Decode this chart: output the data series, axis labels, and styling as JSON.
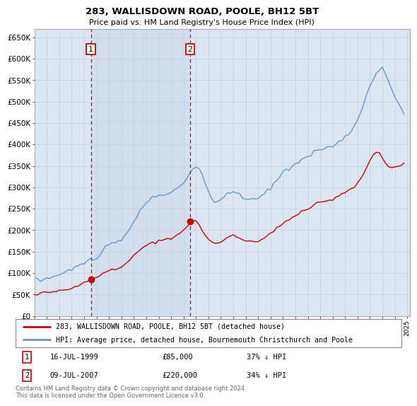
{
  "title": "283, WALLISDOWN ROAD, POOLE, BH12 5BT",
  "subtitle": "Price paid vs. HM Land Registry's House Price Index (HPI)",
  "background_color": "#ffffff",
  "plot_bg_color": "#dce6f1",
  "grid_color": "#c8d4e3",
  "ylim": [
    0,
    670000
  ],
  "yticks": [
    0,
    50000,
    100000,
    150000,
    200000,
    250000,
    300000,
    350000,
    400000,
    450000,
    500000,
    550000,
    600000,
    650000
  ],
  "ytick_labels": [
    "£0",
    "£50K",
    "£100K",
    "£150K",
    "£200K",
    "£250K",
    "£300K",
    "£350K",
    "£400K",
    "£450K",
    "£500K",
    "£550K",
    "£600K",
    "£650K"
  ],
  "sale1_date": 1999.54,
  "sale1_price": 85000,
  "sale1_label": "1",
  "sale2_date": 2007.52,
  "sale2_price": 220000,
  "sale2_label": "2",
  "legend_line1": "283, WALLISDOWN ROAD, POOLE, BH12 5BT (detached house)",
  "legend_line2": "HPI: Average price, detached house, Bournemouth Christchurch and Poole",
  "footer": "Contains HM Land Registry data © Crown copyright and database right 2024.\nThis data is licensed under the Open Government Licence v3.0.",
  "line_red_color": "#cc0000",
  "line_blue_color": "#6699cc",
  "shade_color": "#dce6f1",
  "box_color": "#cc0000",
  "hpi_years": [
    1995.0,
    1995.25,
    1995.5,
    1995.75,
    1996.0,
    1996.25,
    1996.5,
    1996.75,
    1997.0,
    1997.25,
    1997.5,
    1997.75,
    1998.0,
    1998.25,
    1998.5,
    1998.75,
    1999.0,
    1999.25,
    1999.5,
    1999.75,
    2000.0,
    2000.25,
    2000.5,
    2000.75,
    2001.0,
    2001.25,
    2001.5,
    2001.75,
    2002.0,
    2002.25,
    2002.5,
    2002.75,
    2003.0,
    2003.25,
    2003.5,
    2003.75,
    2004.0,
    2004.25,
    2004.5,
    2004.75,
    2005.0,
    2005.25,
    2005.5,
    2005.75,
    2006.0,
    2006.25,
    2006.5,
    2006.75,
    2007.0,
    2007.25,
    2007.5,
    2007.75,
    2008.0,
    2008.25,
    2008.5,
    2008.75,
    2009.0,
    2009.25,
    2009.5,
    2009.75,
    2010.0,
    2010.25,
    2010.5,
    2010.75,
    2011.0,
    2011.25,
    2011.5,
    2011.75,
    2012.0,
    2012.25,
    2012.5,
    2012.75,
    2013.0,
    2013.25,
    2013.5,
    2013.75,
    2014.0,
    2014.25,
    2014.5,
    2014.75,
    2015.0,
    2015.25,
    2015.5,
    2015.75,
    2016.0,
    2016.25,
    2016.5,
    2016.75,
    2017.0,
    2017.25,
    2017.5,
    2017.75,
    2018.0,
    2018.25,
    2018.5,
    2018.75,
    2019.0,
    2019.25,
    2019.5,
    2019.75,
    2020.0,
    2020.25,
    2020.5,
    2020.75,
    2021.0,
    2021.25,
    2021.5,
    2021.75,
    2022.0,
    2022.25,
    2022.5,
    2022.75,
    2023.0,
    2023.25,
    2023.5,
    2023.75,
    2024.0,
    2024.25,
    2024.5,
    2024.75
  ],
  "hpi_values": [
    86000,
    85000,
    84000,
    85000,
    87000,
    89000,
    91000,
    93000,
    96000,
    99000,
    102000,
    105000,
    108000,
    112000,
    116000,
    120000,
    124000,
    128000,
    130000,
    133000,
    138000,
    145000,
    152000,
    158000,
    163000,
    167000,
    170000,
    172000,
    176000,
    185000,
    196000,
    208000,
    220000,
    232000,
    244000,
    254000,
    263000,
    270000,
    276000,
    279000,
    280000,
    282000,
    284000,
    286000,
    290000,
    295000,
    299000,
    303000,
    308000,
    320000,
    333000,
    342000,
    348000,
    342000,
    328000,
    308000,
    285000,
    272000,
    265000,
    268000,
    272000,
    278000,
    284000,
    288000,
    290000,
    288000,
    283000,
    278000,
    273000,
    272000,
    273000,
    272000,
    274000,
    278000,
    284000,
    290000,
    298000,
    308000,
    318000,
    326000,
    332000,
    338000,
    344000,
    350000,
    356000,
    362000,
    366000,
    368000,
    372000,
    378000,
    383000,
    386000,
    388000,
    390000,
    392000,
    393000,
    395000,
    400000,
    406000,
    413000,
    420000,
    427000,
    433000,
    443000,
    458000,
    475000,
    495000,
    516000,
    535000,
    552000,
    565000,
    574000,
    575000,
    565000,
    548000,
    530000,
    512000,
    498000,
    485000,
    475000
  ],
  "red_years": [
    1995.0,
    1995.25,
    1995.5,
    1995.75,
    1996.0,
    1996.25,
    1996.5,
    1996.75,
    1997.0,
    1997.25,
    1997.5,
    1997.75,
    1998.0,
    1998.25,
    1998.5,
    1998.75,
    1999.0,
    1999.25,
    1999.5,
    1999.75,
    2000.0,
    2000.25,
    2000.5,
    2000.75,
    2001.0,
    2001.25,
    2001.5,
    2001.75,
    2002.0,
    2002.25,
    2002.5,
    2002.75,
    2003.0,
    2003.25,
    2003.5,
    2003.75,
    2004.0,
    2004.25,
    2004.5,
    2004.75,
    2005.0,
    2005.25,
    2005.5,
    2005.75,
    2006.0,
    2006.25,
    2006.5,
    2006.75,
    2007.0,
    2007.25,
    2007.5,
    2007.75,
    2008.0,
    2008.25,
    2008.5,
    2008.75,
    2009.0,
    2009.25,
    2009.5,
    2009.75,
    2010.0,
    2010.25,
    2010.5,
    2010.75,
    2011.0,
    2011.25,
    2011.5,
    2011.75,
    2012.0,
    2012.25,
    2012.5,
    2012.75,
    2013.0,
    2013.25,
    2013.5,
    2013.75,
    2014.0,
    2014.25,
    2014.5,
    2014.75,
    2015.0,
    2015.25,
    2015.5,
    2015.75,
    2016.0,
    2016.25,
    2016.5,
    2016.75,
    2017.0,
    2017.25,
    2017.5,
    2017.75,
    2018.0,
    2018.25,
    2018.5,
    2018.75,
    2019.0,
    2019.25,
    2019.5,
    2019.75,
    2020.0,
    2020.25,
    2020.5,
    2020.75,
    2021.0,
    2021.25,
    2021.5,
    2021.75,
    2022.0,
    2022.25,
    2022.5,
    2022.75,
    2023.0,
    2023.25,
    2023.5,
    2023.75,
    2024.0,
    2024.25,
    2024.5,
    2024.75
  ],
  "red_values": [
    50000,
    51000,
    52000,
    52500,
    53000,
    54000,
    55000,
    56000,
    57500,
    59000,
    61000,
    63000,
    65000,
    68000,
    71000,
    74000,
    77000,
    80000,
    83000,
    86000,
    90000,
    95000,
    100000,
    103000,
    105000,
    107000,
    109000,
    111000,
    113000,
    118000,
    125000,
    132000,
    140000,
    147000,
    154000,
    160000,
    165000,
    168000,
    171000,
    173000,
    175000,
    176000,
    178000,
    180000,
    182000,
    186000,
    190000,
    195000,
    200000,
    208000,
    218000,
    222000,
    220000,
    212000,
    200000,
    188000,
    178000,
    172000,
    168000,
    170000,
    174000,
    178000,
    182000,
    185000,
    186000,
    184000,
    181000,
    178000,
    175000,
    174000,
    174000,
    173000,
    175000,
    178000,
    182000,
    186000,
    192000,
    198000,
    205000,
    210000,
    215000,
    220000,
    225000,
    230000,
    235000,
    240000,
    244000,
    246000,
    250000,
    255000,
    260000,
    263000,
    265000,
    267000,
    269000,
    270000,
    272000,
    275000,
    279000,
    284000,
    288000,
    292000,
    296000,
    302000,
    310000,
    320000,
    333000,
    348000,
    362000,
    375000,
    383000,
    380000,
    368000,
    356000,
    348000,
    345000,
    348000,
    350000,
    352000,
    355000
  ]
}
